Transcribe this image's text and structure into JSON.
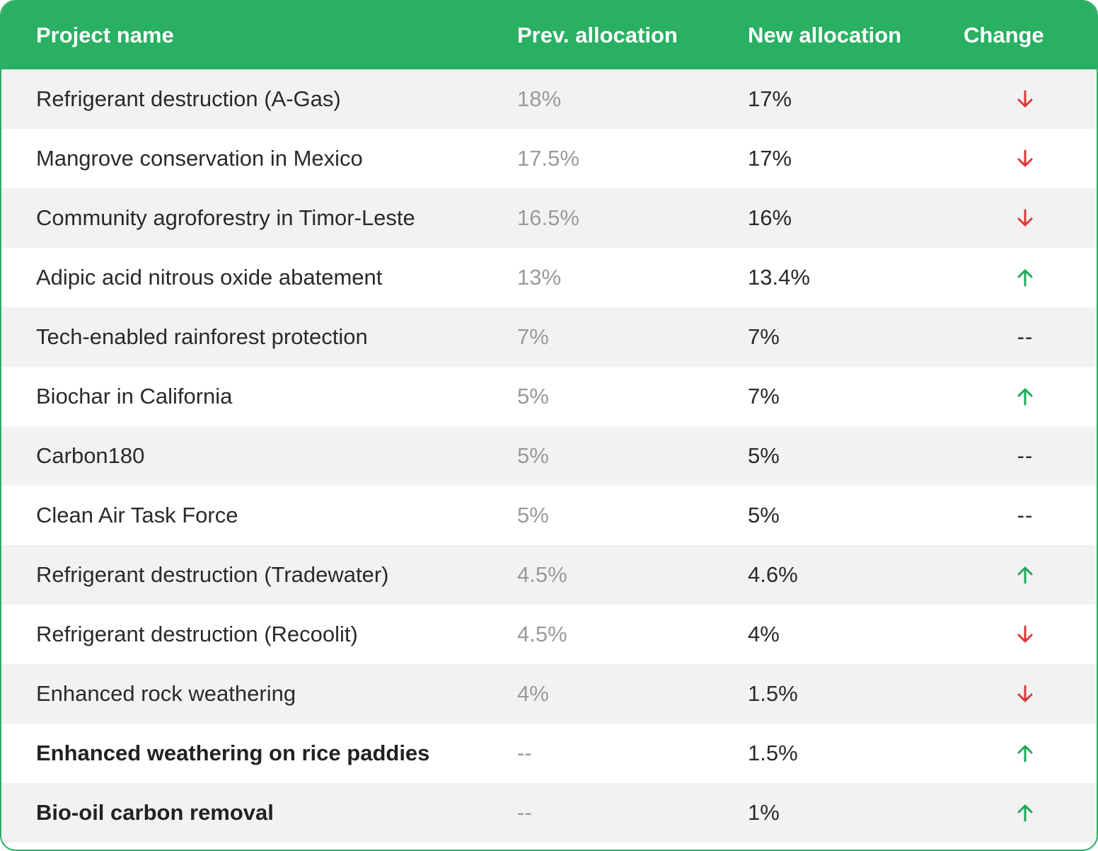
{
  "header": {
    "project_name": "Project name",
    "prev_allocation": "Prev. allocation",
    "new_allocation": "New allocation",
    "change": "Change"
  },
  "colors": {
    "header_green": "#29b062",
    "down_red": "#d9383a",
    "up_green": "#1fa85a",
    "prev_gray": "#9a9a9a"
  },
  "rows": [
    {
      "name": "Refrigerant destruction (A-Gas)",
      "prev": "18%",
      "new": "17%",
      "change": "down",
      "bold": false
    },
    {
      "name": "Mangrove conservation in Mexico",
      "prev": "17.5%",
      "new": "17%",
      "change": "down",
      "bold": false
    },
    {
      "name": "Community agroforestry in Timor-Leste",
      "prev": "16.5%",
      "new": "16%",
      "change": "down",
      "bold": false
    },
    {
      "name": "Adipic acid nitrous oxide abatement",
      "prev": "13%",
      "new": "13.4%",
      "change": "up",
      "bold": false
    },
    {
      "name": "Tech-enabled rainforest protection",
      "prev": "7%",
      "new": "7%",
      "change": "none",
      "bold": false
    },
    {
      "name": "Biochar in California",
      "prev": "5%",
      "new": "7%",
      "change": "up",
      "bold": false
    },
    {
      "name": "Carbon180",
      "prev": "5%",
      "new": "5%",
      "change": "none",
      "bold": false
    },
    {
      "name": "Clean Air Task Force",
      "prev": "5%",
      "new": "5%",
      "change": "none",
      "bold": false
    },
    {
      "name": "Refrigerant destruction (Tradewater)",
      "prev": "4.5%",
      "new": "4.6%",
      "change": "up",
      "bold": false
    },
    {
      "name": "Refrigerant destruction (Recoolit)",
      "prev": "4.5%",
      "new": "4%",
      "change": "down",
      "bold": false
    },
    {
      "name": "Enhanced rock weathering",
      "prev": "4%",
      "new": "1.5%",
      "change": "down",
      "bold": false
    },
    {
      "name": "Enhanced weathering on rice paddies",
      "prev": "--",
      "new": "1.5%",
      "change": "up",
      "bold": true
    },
    {
      "name": "Bio-oil carbon removal",
      "prev": "--",
      "new": "1%",
      "change": "up",
      "bold": true
    }
  ],
  "change_none_text": "--"
}
